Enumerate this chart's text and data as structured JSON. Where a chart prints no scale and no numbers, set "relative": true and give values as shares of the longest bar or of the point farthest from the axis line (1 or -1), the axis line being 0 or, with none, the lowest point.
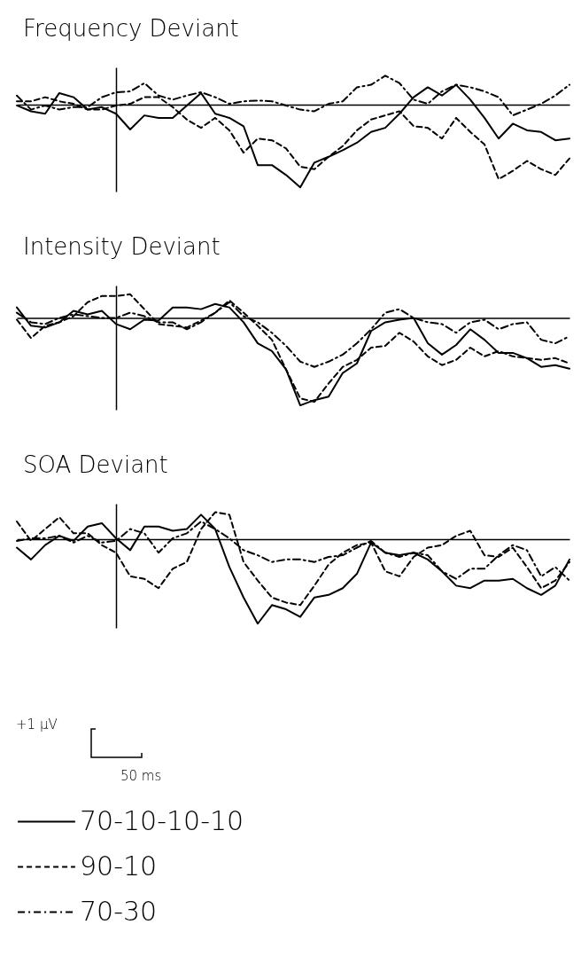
{
  "chart_data": [
    {
      "type": "line",
      "title": "Frequency Deviant",
      "relative": true,
      "legend": false,
      "categories": [
        null,
        null,
        null,
        null,
        null,
        null,
        null,
        null,
        null,
        null,
        null,
        null,
        null,
        null,
        null,
        null,
        null,
        null,
        null,
        null,
        null,
        null,
        null,
        null,
        null,
        null,
        null,
        null,
        null,
        null,
        null,
        null,
        null,
        null,
        null,
        null,
        null,
        null,
        null,
        null
      ],
      "series": [
        {
          "color": "#000000",
          "line_style": "solid",
          "values": [
            -0.01,
            -0.08,
            -0.11,
            0.14,
            0.09,
            -0.06,
            -0.03,
            -0.11,
            -0.3,
            -0.13,
            -0.16,
            -0.16,
            -0.01,
            0.14,
            -0.11,
            -0.16,
            -0.26,
            -0.73,
            -0.73,
            -0.85,
            -1,
            -0.7,
            -0.63,
            -0.55,
            -0.46,
            -0.33,
            -0.28,
            -0.11,
            0.09,
            0.21,
            0.11,
            0.24,
            0.06,
            -0.16,
            -0.41,
            -0.23,
            -0.31,
            -0.33,
            -0.43,
            -0.41
          ]
        },
        {
          "color": "#000000",
          "line_style": "dashed",
          "values": [
            0.04,
            0.04,
            0.09,
            0.04,
            0.01,
            -0.06,
            -0.06,
            -0.01,
            0.01,
            0.09,
            0.09,
            -0.03,
            -0.18,
            -0.28,
            -0.16,
            -0.31,
            -0.58,
            -0.41,
            -0.43,
            -0.53,
            -0.75,
            -0.78,
            -0.63,
            -0.5,
            -0.31,
            -0.18,
            -0.13,
            -0.08,
            -0.26,
            -0.28,
            -0.41,
            -0.16,
            -0.33,
            -0.48,
            -0.9,
            -0.8,
            -0.68,
            -0.78,
            -0.85,
            -0.65
          ]
        },
        {
          "color": "#000000",
          "line_style": "dashdot",
          "values": [
            0.11,
            -0.06,
            -0.01,
            -0.06,
            -0.03,
            -0.03,
            0.09,
            0.15,
            0.16,
            0.26,
            0.11,
            0.06,
            0.11,
            0.15,
            0.09,
            0.01,
            0.04,
            0.05,
            0.04,
            -0.01,
            -0.06,
            -0.08,
            0.01,
            0.04,
            0.21,
            0.24,
            0.35,
            0.26,
            0.06,
            0.01,
            0.16,
            0.24,
            0.21,
            0.16,
            0.09,
            -0.13,
            -0.06,
            0.01,
            0.11,
            0.24
          ]
        }
      ]
    },
    {
      "type": "line",
      "title": "Intensity Deviant",
      "relative": true,
      "legend": false,
      "categories": [
        null,
        null,
        null,
        null,
        null,
        null,
        null,
        null,
        null,
        null,
        null,
        null,
        null,
        null,
        null,
        null,
        null,
        null,
        null,
        null,
        null,
        null,
        null,
        null,
        null,
        null,
        null,
        null,
        null,
        null,
        null,
        null,
        null,
        null,
        null,
        null,
        null,
        null,
        null,
        null
      ],
      "series": [
        {
          "color": "#000000",
          "line_style": "solid",
          "values": [
            0.12,
            -0.09,
            -0.11,
            -0.05,
            0.08,
            0.04,
            0.08,
            -0.07,
            -0.13,
            -0.02,
            -0.03,
            0.12,
            0.12,
            0.1,
            0.16,
            0.12,
            -0.05,
            -0.29,
            -0.38,
            -0.59,
            -1,
            -0.94,
            -0.9,
            -0.63,
            -0.52,
            -0.15,
            -0.05,
            -0.02,
            0,
            -0.29,
            -0.42,
            -0.31,
            -0.13,
            -0.25,
            -0.4,
            -0.4,
            -0.46,
            -0.56,
            -0.54,
            -0.58
          ]
        },
        {
          "color": "#000000",
          "line_style": "dashed",
          "values": [
            -0.02,
            -0.23,
            -0.09,
            -0.05,
            0.02,
            0.18,
            0.25,
            0.25,
            0.27,
            0.1,
            -0.07,
            -0.09,
            -0.11,
            -0.03,
            0.06,
            0.2,
            0.06,
            -0.09,
            -0.25,
            -0.59,
            -0.92,
            -0.96,
            -0.75,
            -0.56,
            -0.48,
            -0.34,
            -0.32,
            -0.17,
            -0.27,
            -0.44,
            -0.54,
            -0.48,
            -0.34,
            -0.44,
            -0.38,
            -0.44,
            -0.46,
            -0.48,
            -0.46,
            -0.52
          ]
        },
        {
          "color": "#000000",
          "line_style": "dashdot",
          "values": [
            0.06,
            -0.05,
            -0.07,
            0,
            0.04,
            0.02,
            0,
            0,
            0.06,
            0.02,
            -0.05,
            -0.05,
            -0.13,
            -0.05,
            0.06,
            0.18,
            0.02,
            -0.05,
            -0.17,
            -0.32,
            -0.5,
            -0.56,
            -0.5,
            -0.42,
            -0.29,
            -0.13,
            0.06,
            0.1,
            0,
            -0.05,
            -0.07,
            -0.17,
            -0.05,
            -0.02,
            -0.13,
            -0.07,
            -0.05,
            -0.25,
            -0.29,
            -0.21
          ]
        }
      ]
    },
    {
      "type": "line",
      "title": "SOA Deviant",
      "relative": true,
      "legend": "bottom",
      "annotations": [
        "+1 µV",
        "50 ms"
      ],
      "categories": [
        null,
        null,
        null,
        null,
        null,
        null,
        null,
        null,
        null,
        null,
        null,
        null,
        null,
        null,
        null,
        null,
        null,
        null,
        null,
        null,
        null,
        null,
        null,
        null,
        null,
        null,
        null,
        null,
        null,
        null,
        null,
        null,
        null,
        null,
        null,
        null,
        null,
        null,
        null,
        null
      ],
      "series": [
        {
          "name": "70-10-10-10",
          "color": "#000000",
          "line_style": "solid",
          "values": [
            -0.1,
            -0.24,
            -0.07,
            0.04,
            -0.02,
            0.15,
            0.19,
            0.01,
            -0.13,
            0.15,
            0.15,
            0.1,
            0.12,
            0.29,
            0.12,
            -0.33,
            -0.69,
            -1,
            -0.78,
            -0.83,
            -0.92,
            -0.69,
            -0.66,
            -0.58,
            -0.41,
            -0.04,
            -0.16,
            -0.19,
            -0.16,
            -0.24,
            -0.38,
            -0.55,
            -0.58,
            -0.49,
            -0.49,
            -0.47,
            -0.58,
            -0.66,
            -0.55,
            -0.24
          ]
        },
        {
          "name": "90-10",
          "color": "#000000",
          "line_style": "dashed",
          "values": [
            0.21,
            -0.02,
            0.12,
            0.26,
            0.07,
            0.07,
            -0.07,
            -0.16,
            -0.44,
            -0.47,
            -0.58,
            -0.35,
            -0.27,
            0.12,
            0.32,
            0.29,
            -0.27,
            -0.49,
            -0.69,
            -0.75,
            -0.78,
            -0.55,
            -0.3,
            -0.16,
            -0.07,
            -0.04,
            -0.38,
            -0.44,
            -0.21,
            -0.1,
            -0.07,
            0.04,
            0.1,
            -0.19,
            -0.21,
            -0.1,
            -0.33,
            -0.58,
            -0.49,
            -0.27
          ]
        },
        {
          "name": "70-30",
          "color": "#000000",
          "line_style": "dashdot",
          "values": [
            -0.02,
            0.01,
            0.01,
            0.04,
            -0.04,
            0.04,
            -0.04,
            -0.02,
            0.12,
            0.07,
            -0.16,
            0.01,
            0.07,
            0.21,
            0.12,
            0.01,
            -0.13,
            -0.19,
            -0.27,
            -0.24,
            -0.24,
            -0.27,
            -0.21,
            -0.19,
            -0.1,
            -0.02,
            -0.16,
            -0.21,
            -0.16,
            -0.19,
            -0.38,
            -0.47,
            -0.35,
            -0.35,
            -0.19,
            -0.07,
            -0.13,
            -0.44,
            -0.33,
            -0.49
          ]
        }
      ]
    }
  ]
}
